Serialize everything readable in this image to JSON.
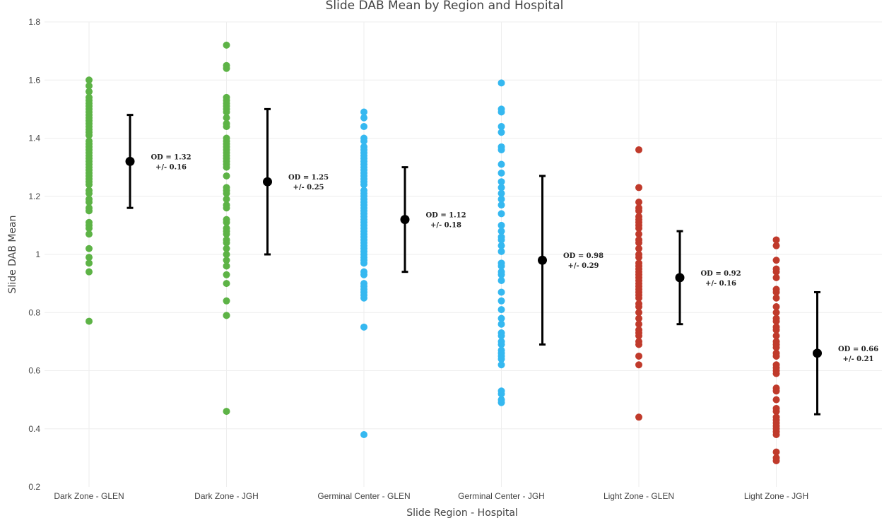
{
  "chart_data": {
    "type": "scatter",
    "title": "Slide DAB Mean by Region and Hospital",
    "xlabel": "Slide Region - Hospital",
    "ylabel": "Slide DAB Mean",
    "ylim": [
      0.2,
      1.8
    ],
    "yticks": [
      0.2,
      0.4,
      0.6,
      0.8,
      1,
      1.2,
      1.4,
      1.6,
      1.8
    ],
    "grid": true,
    "categories": [
      "Dark Zone - GLEN",
      "Dark Zone - JGH",
      "Germinal Center - GLEN",
      "Germinal Center - JGH",
      "Light Zone - GLEN",
      "Light Zone - JGH"
    ],
    "series": [
      {
        "category": "Dark Zone - GLEN",
        "color": "#5db346",
        "points": [
          1.6,
          1.58,
          1.56,
          1.54,
          1.53,
          1.52,
          1.51,
          1.5,
          1.49,
          1.48,
          1.47,
          1.46,
          1.45,
          1.44,
          1.43,
          1.42,
          1.41,
          1.39,
          1.38,
          1.37,
          1.36,
          1.35,
          1.34,
          1.33,
          1.32,
          1.31,
          1.3,
          1.29,
          1.28,
          1.27,
          1.26,
          1.25,
          1.24,
          1.22,
          1.21,
          1.19,
          1.18,
          1.16,
          1.15,
          1.11,
          1.1,
          1.09,
          1.07,
          1.02,
          0.99,
          0.97,
          0.94,
          0.77
        ],
        "mean": 1.32,
        "sd": 0.16,
        "annotation_line1": "OD =  1.32",
        "annotation_line2": "+/-  0.16"
      },
      {
        "category": "Dark Zone - JGH",
        "color": "#5db346",
        "points": [
          1.72,
          1.65,
          1.64,
          1.54,
          1.53,
          1.52,
          1.51,
          1.5,
          1.49,
          1.47,
          1.45,
          1.44,
          1.4,
          1.39,
          1.38,
          1.37,
          1.36,
          1.35,
          1.34,
          1.33,
          1.32,
          1.31,
          1.3,
          1.27,
          1.23,
          1.22,
          1.21,
          1.19,
          1.17,
          1.16,
          1.12,
          1.11,
          1.09,
          1.08,
          1.07,
          1.05,
          1.04,
          1.02,
          1.0,
          0.98,
          0.96,
          0.93,
          0.9,
          0.84,
          0.79,
          0.79,
          0.46
        ],
        "mean": 1.25,
        "sd": 0.25,
        "annotation_line1": "OD =  1.25",
        "annotation_line2": "+/-  0.25"
      },
      {
        "category": "Germinal Center - GLEN",
        "color": "#35b8f0",
        "points": [
          1.49,
          1.47,
          1.44,
          1.4,
          1.39,
          1.37,
          1.36,
          1.35,
          1.34,
          1.33,
          1.32,
          1.31,
          1.3,
          1.29,
          1.28,
          1.27,
          1.26,
          1.25,
          1.24,
          1.22,
          1.21,
          1.2,
          1.19,
          1.18,
          1.17,
          1.16,
          1.15,
          1.14,
          1.13,
          1.12,
          1.11,
          1.1,
          1.09,
          1.08,
          1.07,
          1.06,
          1.05,
          1.04,
          1.03,
          1.02,
          1.01,
          1.0,
          0.99,
          0.98,
          0.97,
          0.94,
          0.93,
          0.9,
          0.89,
          0.88,
          0.87,
          0.86,
          0.85,
          0.75,
          0.38
        ],
        "mean": 1.12,
        "sd": 0.18,
        "annotation_line1": "OD =  1.12",
        "annotation_line2": "+/-  0.18"
      },
      {
        "category": "Germinal Center - JGH",
        "color": "#35b8f0",
        "points": [
          1.59,
          1.5,
          1.49,
          1.44,
          1.42,
          1.37,
          1.36,
          1.31,
          1.28,
          1.25,
          1.23,
          1.21,
          1.19,
          1.17,
          1.14,
          1.1,
          1.08,
          1.06,
          1.05,
          1.03,
          1.01,
          0.97,
          0.96,
          0.94,
          0.93,
          0.91,
          0.87,
          0.84,
          0.81,
          0.78,
          0.76,
          0.73,
          0.72,
          0.7,
          0.69,
          0.67,
          0.66,
          0.65,
          0.64,
          0.62,
          0.53,
          0.52,
          0.5,
          0.49
        ],
        "mean": 0.98,
        "sd": 0.29,
        "annotation_line1": "OD =  0.98",
        "annotation_line2": "+/-  0.29"
      },
      {
        "category": "Light Zone - GLEN",
        "color": "#c03a2b",
        "points": [
          1.36,
          1.23,
          1.18,
          1.16,
          1.15,
          1.13,
          1.12,
          1.11,
          1.1,
          1.09,
          1.07,
          1.05,
          1.04,
          1.02,
          1.0,
          0.99,
          0.97,
          0.96,
          0.95,
          0.94,
          0.93,
          0.92,
          0.91,
          0.9,
          0.89,
          0.88,
          0.87,
          0.86,
          0.85,
          0.83,
          0.82,
          0.8,
          0.78,
          0.76,
          0.74,
          0.73,
          0.72,
          0.7,
          0.69,
          0.65,
          0.62,
          0.44
        ],
        "mean": 0.92,
        "sd": 0.16,
        "annotation_line1": "OD =  0.92",
        "annotation_line2": "+/-  0.16"
      },
      {
        "category": "Light Zone - JGH",
        "color": "#c03a2b",
        "points": [
          1.05,
          1.03,
          0.98,
          0.95,
          0.94,
          0.92,
          0.88,
          0.87,
          0.85,
          0.82,
          0.8,
          0.78,
          0.77,
          0.75,
          0.74,
          0.72,
          0.7,
          0.69,
          0.68,
          0.66,
          0.65,
          0.62,
          0.61,
          0.6,
          0.59,
          0.54,
          0.53,
          0.5,
          0.47,
          0.46,
          0.44,
          0.43,
          0.42,
          0.41,
          0.4,
          0.39,
          0.38,
          0.32,
          0.3,
          0.29
        ],
        "mean": 0.66,
        "sd": 0.21,
        "annotation_line1": "OD =  0.66",
        "annotation_line2": "+/-  0.21"
      }
    ]
  }
}
